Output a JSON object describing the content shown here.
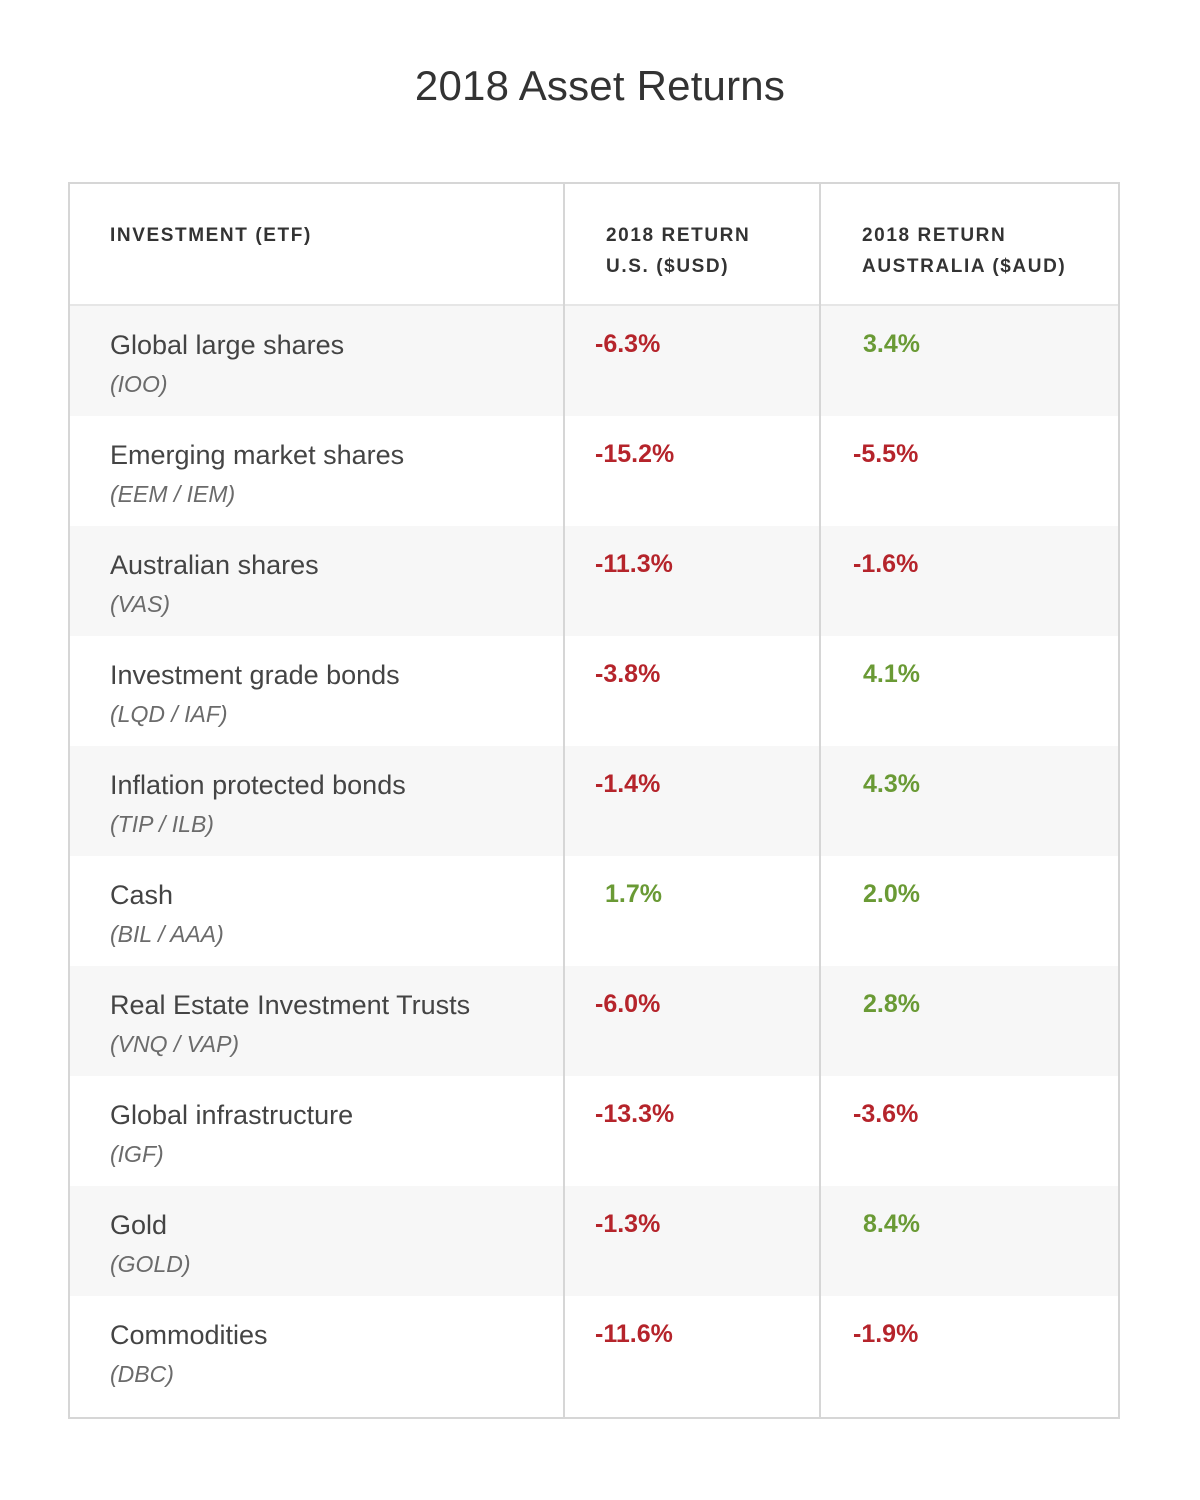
{
  "title": "2018 Asset Returns",
  "chart_data": {
    "type": "table",
    "title": "2018 Asset Returns",
    "columns": [
      {
        "lines": [
          "INVESTMENT (ETF)"
        ]
      },
      {
        "lines": [
          "2018 RETURN",
          "U.S. ($USD)"
        ]
      },
      {
        "lines": [
          "2018 RETURN",
          "AUSTRALIA ($AUD)"
        ]
      }
    ],
    "rows": [
      {
        "name": "Global large shares",
        "ticker": "(IOO)",
        "usd": "-6.3%",
        "aud": "3.4%",
        "usd_value": -6.3,
        "aud_value": 3.4
      },
      {
        "name": "Emerging market shares",
        "ticker": "(EEM / IEM)",
        "usd": "-15.2%",
        "aud": "-5.5%",
        "usd_value": -15.2,
        "aud_value": -5.5
      },
      {
        "name": "Australian shares",
        "ticker": "(VAS)",
        "usd": "-11.3%",
        "aud": "-1.6%",
        "usd_value": -11.3,
        "aud_value": -1.6
      },
      {
        "name": "Investment grade bonds",
        "ticker": "(LQD / IAF)",
        "usd": "-3.8%",
        "aud": "4.1%",
        "usd_value": -3.8,
        "aud_value": 4.1
      },
      {
        "name": "Inflation protected bonds",
        "ticker": "(TIP / ILB)",
        "usd": "-1.4%",
        "aud": "4.3%",
        "usd_value": -1.4,
        "aud_value": 4.3
      },
      {
        "name": "Cash",
        "ticker": "(BIL / AAA)",
        "usd": "1.7%",
        "aud": "2.0%",
        "usd_value": 1.7,
        "aud_value": 2.0
      },
      {
        "name": "Real Estate Investment Trusts",
        "ticker": "(VNQ / VAP)",
        "usd": "-6.0%",
        "aud": "2.8%",
        "usd_value": -6.0,
        "aud_value": 2.8
      },
      {
        "name": "Global infrastructure",
        "ticker": "(IGF)",
        "usd": "-13.3%",
        "aud": "-3.6%",
        "usd_value": -13.3,
        "aud_value": -3.6
      },
      {
        "name": "Gold",
        "ticker": "(GOLD)",
        "usd": "-1.3%",
        "aud": "8.4%",
        "usd_value": -1.3,
        "aud_value": 8.4
      },
      {
        "name": "Commodities",
        "ticker": "(DBC)",
        "usd": "-11.6%",
        "aud": "-1.9%",
        "usd_value": -11.6,
        "aud_value": -1.9
      }
    ]
  },
  "colors": {
    "negative": "#b5242b",
    "positive": "#6a9a35",
    "row_shade": "#f7f7f7",
    "border": "#d6d6d6"
  }
}
